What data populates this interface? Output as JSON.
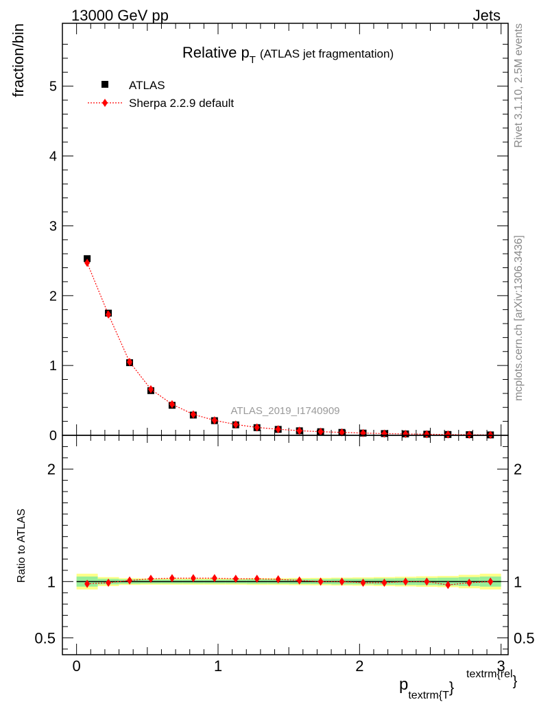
{
  "header": {
    "left": "13000 GeV pp",
    "right": "Jets"
  },
  "side_labels": {
    "top": "Rivet 3.1.10,  2.5M events",
    "bottom": "mcplots.cern.ch [arXiv:1306.3436]"
  },
  "chart_data": [
    {
      "type": "scatter",
      "title_main": "Relative p",
      "title_sub": "T",
      "title_suffix": "(ATLAS jet fragmentation)",
      "ylabel": "fraction/bin",
      "watermark": "ATLAS_2019_I1740909",
      "xlim": [
        -0.1,
        3.05
      ],
      "ylim": [
        0,
        5.9
      ],
      "yticks": [
        0,
        1,
        2,
        3,
        4,
        5
      ],
      "ytick_labels": [
        "0",
        "1",
        "2",
        "3",
        "4",
        "5"
      ],
      "x": [
        0.075,
        0.225,
        0.375,
        0.525,
        0.675,
        0.825,
        0.975,
        1.125,
        1.275,
        1.425,
        1.575,
        1.725,
        1.875,
        2.025,
        2.175,
        2.325,
        2.475,
        2.625,
        2.775,
        2.925
      ],
      "series": [
        {
          "name": "ATLAS",
          "color": "#000000",
          "marker": "square",
          "values": [
            2.53,
            1.75,
            1.04,
            0.64,
            0.43,
            0.29,
            0.21,
            0.15,
            0.11,
            0.085,
            0.065,
            0.052,
            0.042,
            0.032,
            0.025,
            0.02,
            0.016,
            0.012,
            0.009,
            0.006
          ]
        },
        {
          "name": "Sherpa 2.2.9 default",
          "color": "#ff0000",
          "marker": "diamond",
          "line": "dotted",
          "values": [
            2.47,
            1.73,
            1.05,
            0.66,
            0.445,
            0.3,
            0.215,
            0.155,
            0.113,
            0.087,
            0.066,
            0.052,
            0.042,
            0.032,
            0.025,
            0.02,
            0.016,
            0.0117,
            0.0089,
            0.006
          ]
        }
      ],
      "legend_position": "top-left"
    },
    {
      "type": "scatter",
      "ylabel": "Ratio to ATLAS",
      "xlabel": "p",
      "xlabel_sub": "textrm{T",
      "xlabel_brace": "}",
      "xlabel_sup": "textrm{rel",
      "xlabel_sup_brace": "}",
      "xlim": [
        -0.1,
        3.05
      ],
      "ylim": [
        0.35,
        2.3
      ],
      "xticks": [
        0,
        1,
        2,
        3
      ],
      "xtick_labels": [
        "0",
        "1",
        "2",
        "3"
      ],
      "yticks": [
        0.5,
        1,
        2
      ],
      "ytick_labels": [
        "0.5",
        "1",
        "2"
      ],
      "reference": 1.0,
      "band_green_halfwidth": [
        0.045,
        0.025,
        0.02,
        0.018,
        0.018,
        0.018,
        0.018,
        0.018,
        0.02,
        0.02,
        0.022,
        0.022,
        0.025,
        0.025,
        0.028,
        0.03,
        0.032,
        0.035,
        0.04,
        0.045
      ],
      "band_yellow_halfwidth": [
        0.07,
        0.04,
        0.03,
        0.028,
        0.028,
        0.028,
        0.028,
        0.028,
        0.03,
        0.03,
        0.032,
        0.033,
        0.035,
        0.037,
        0.04,
        0.043,
        0.047,
        0.05,
        0.06,
        0.07
      ],
      "x": [
        0.075,
        0.225,
        0.375,
        0.525,
        0.675,
        0.825,
        0.975,
        1.125,
        1.275,
        1.425,
        1.575,
        1.725,
        1.875,
        2.025,
        2.175,
        2.325,
        2.475,
        2.625,
        2.775,
        2.925
      ],
      "series": [
        {
          "name": "Sherpa 2.2.9 default",
          "color": "#ff0000",
          "marker": "diamond",
          "line": "dotted",
          "values": [
            0.98,
            0.99,
            1.01,
            1.025,
            1.03,
            1.03,
            1.03,
            1.025,
            1.025,
            1.02,
            1.01,
            1.0,
            1.0,
            0.99,
            0.99,
            1.0,
            1.0,
            0.97,
            0.99,
            1.0
          ]
        }
      ]
    }
  ]
}
